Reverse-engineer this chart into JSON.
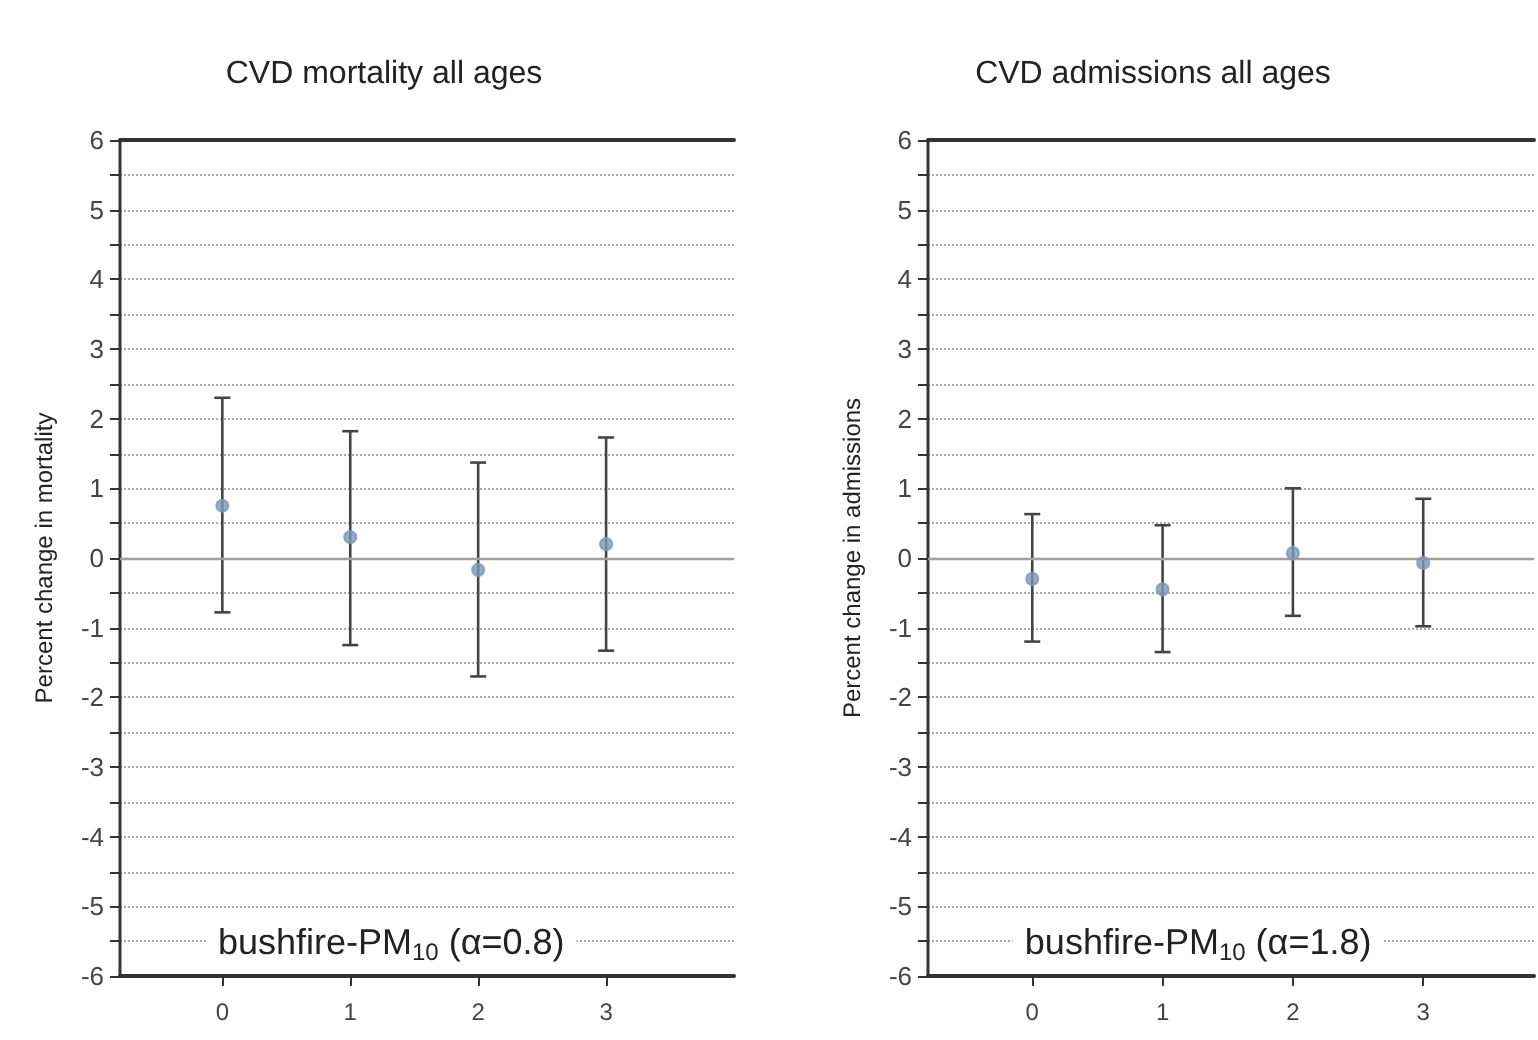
{
  "chart_data": [
    {
      "type": "scatter",
      "title": "CVD mortality all ages",
      "ylabel": "Percent change in mortality",
      "annotations": [
        "bushfire-PM$_{10}$ (α=0.8)"
      ],
      "x": [
        0,
        1,
        2,
        3
      ],
      "series": [
        {
          "color": "#7a98b8",
          "values": [
            0.75,
            0.3,
            -0.17,
            0.2
          ],
          "errors": [
            [
              -0.78,
              2.3
            ],
            [
              -1.25,
              1.82
            ],
            [
              -1.7,
              1.37
            ],
            [
              -1.33,
              1.73
            ]
          ]
        }
      ],
      "xlim": [
        -0.8,
        4
      ],
      "xticks": [
        0,
        1,
        2,
        3
      ],
      "ylim": [
        -6,
        6
      ],
      "yticks": [
        -6,
        {
          "value": -5.5,
          "label": null
        },
        -5,
        {
          "value": -4.5,
          "label": null
        },
        -4,
        {
          "value": -3.5,
          "label": null
        },
        -3,
        {
          "value": -2.5,
          "label": null
        },
        -2,
        {
          "value": -1.5,
          "label": null
        },
        -1,
        {
          "value": -0.5,
          "label": null
        },
        0,
        {
          "value": 0.5,
          "label": null
        },
        1,
        {
          "value": 1.5,
          "label": null
        },
        2,
        {
          "value": 2.5,
          "label": null
        },
        3,
        {
          "value": 3.5,
          "label": null
        },
        4,
        {
          "value": 4.5,
          "label": null
        },
        5,
        {
          "value": 5.5,
          "label": null
        },
        6
      ],
      "ref_lines": [
        {
          "axis": "y",
          "value": 0,
          "color": "#a0a0a0"
        }
      ],
      "grid": "y",
      "marker": "circle"
    },
    {
      "type": "scatter",
      "title": "CVD admissions all ages",
      "ylabel": "Percent change in admissions",
      "annotations": [
        "bushfire-PM$_{10}$ (α=1.8)"
      ],
      "x": [
        0,
        1,
        2,
        3
      ],
      "series": [
        {
          "color": "#7a98b8",
          "values": [
            -0.3,
            -0.45,
            0.07,
            -0.07
          ],
          "errors": [
            [
              -1.2,
              0.63
            ],
            [
              -1.35,
              0.47
            ],
            [
              -0.83,
              1.0
            ],
            [
              -0.98,
              0.85
            ]
          ]
        }
      ],
      "xlim": [
        -0.8,
        3.85
      ],
      "xticks": [
        0,
        1,
        2,
        3
      ],
      "ylim": [
        -6,
        6
      ],
      "yticks": [
        -6,
        {
          "value": -5.5,
          "label": null
        },
        -5,
        {
          "value": -4.5,
          "label": null
        },
        -4,
        {
          "value": -3.5,
          "label": null
        },
        -3,
        {
          "value": -2.5,
          "label": null
        },
        -2,
        {
          "value": -1.5,
          "label": null
        },
        -1,
        {
          "value": -0.5,
          "label": null
        },
        0,
        {
          "value": 0.5,
          "label": null
        },
        1,
        {
          "value": 1.5,
          "label": null
        },
        2,
        {
          "value": 2.5,
          "label": null
        },
        3,
        {
          "value": 3.5,
          "label": null
        },
        4,
        {
          "value": 4.5,
          "label": null
        },
        5,
        {
          "value": 5.5,
          "label": null
        },
        6
      ],
      "ref_lines": [
        {
          "axis": "y",
          "value": 0,
          "color": "#a0a0a0"
        }
      ],
      "grid": "y",
      "marker": "circle"
    }
  ]
}
